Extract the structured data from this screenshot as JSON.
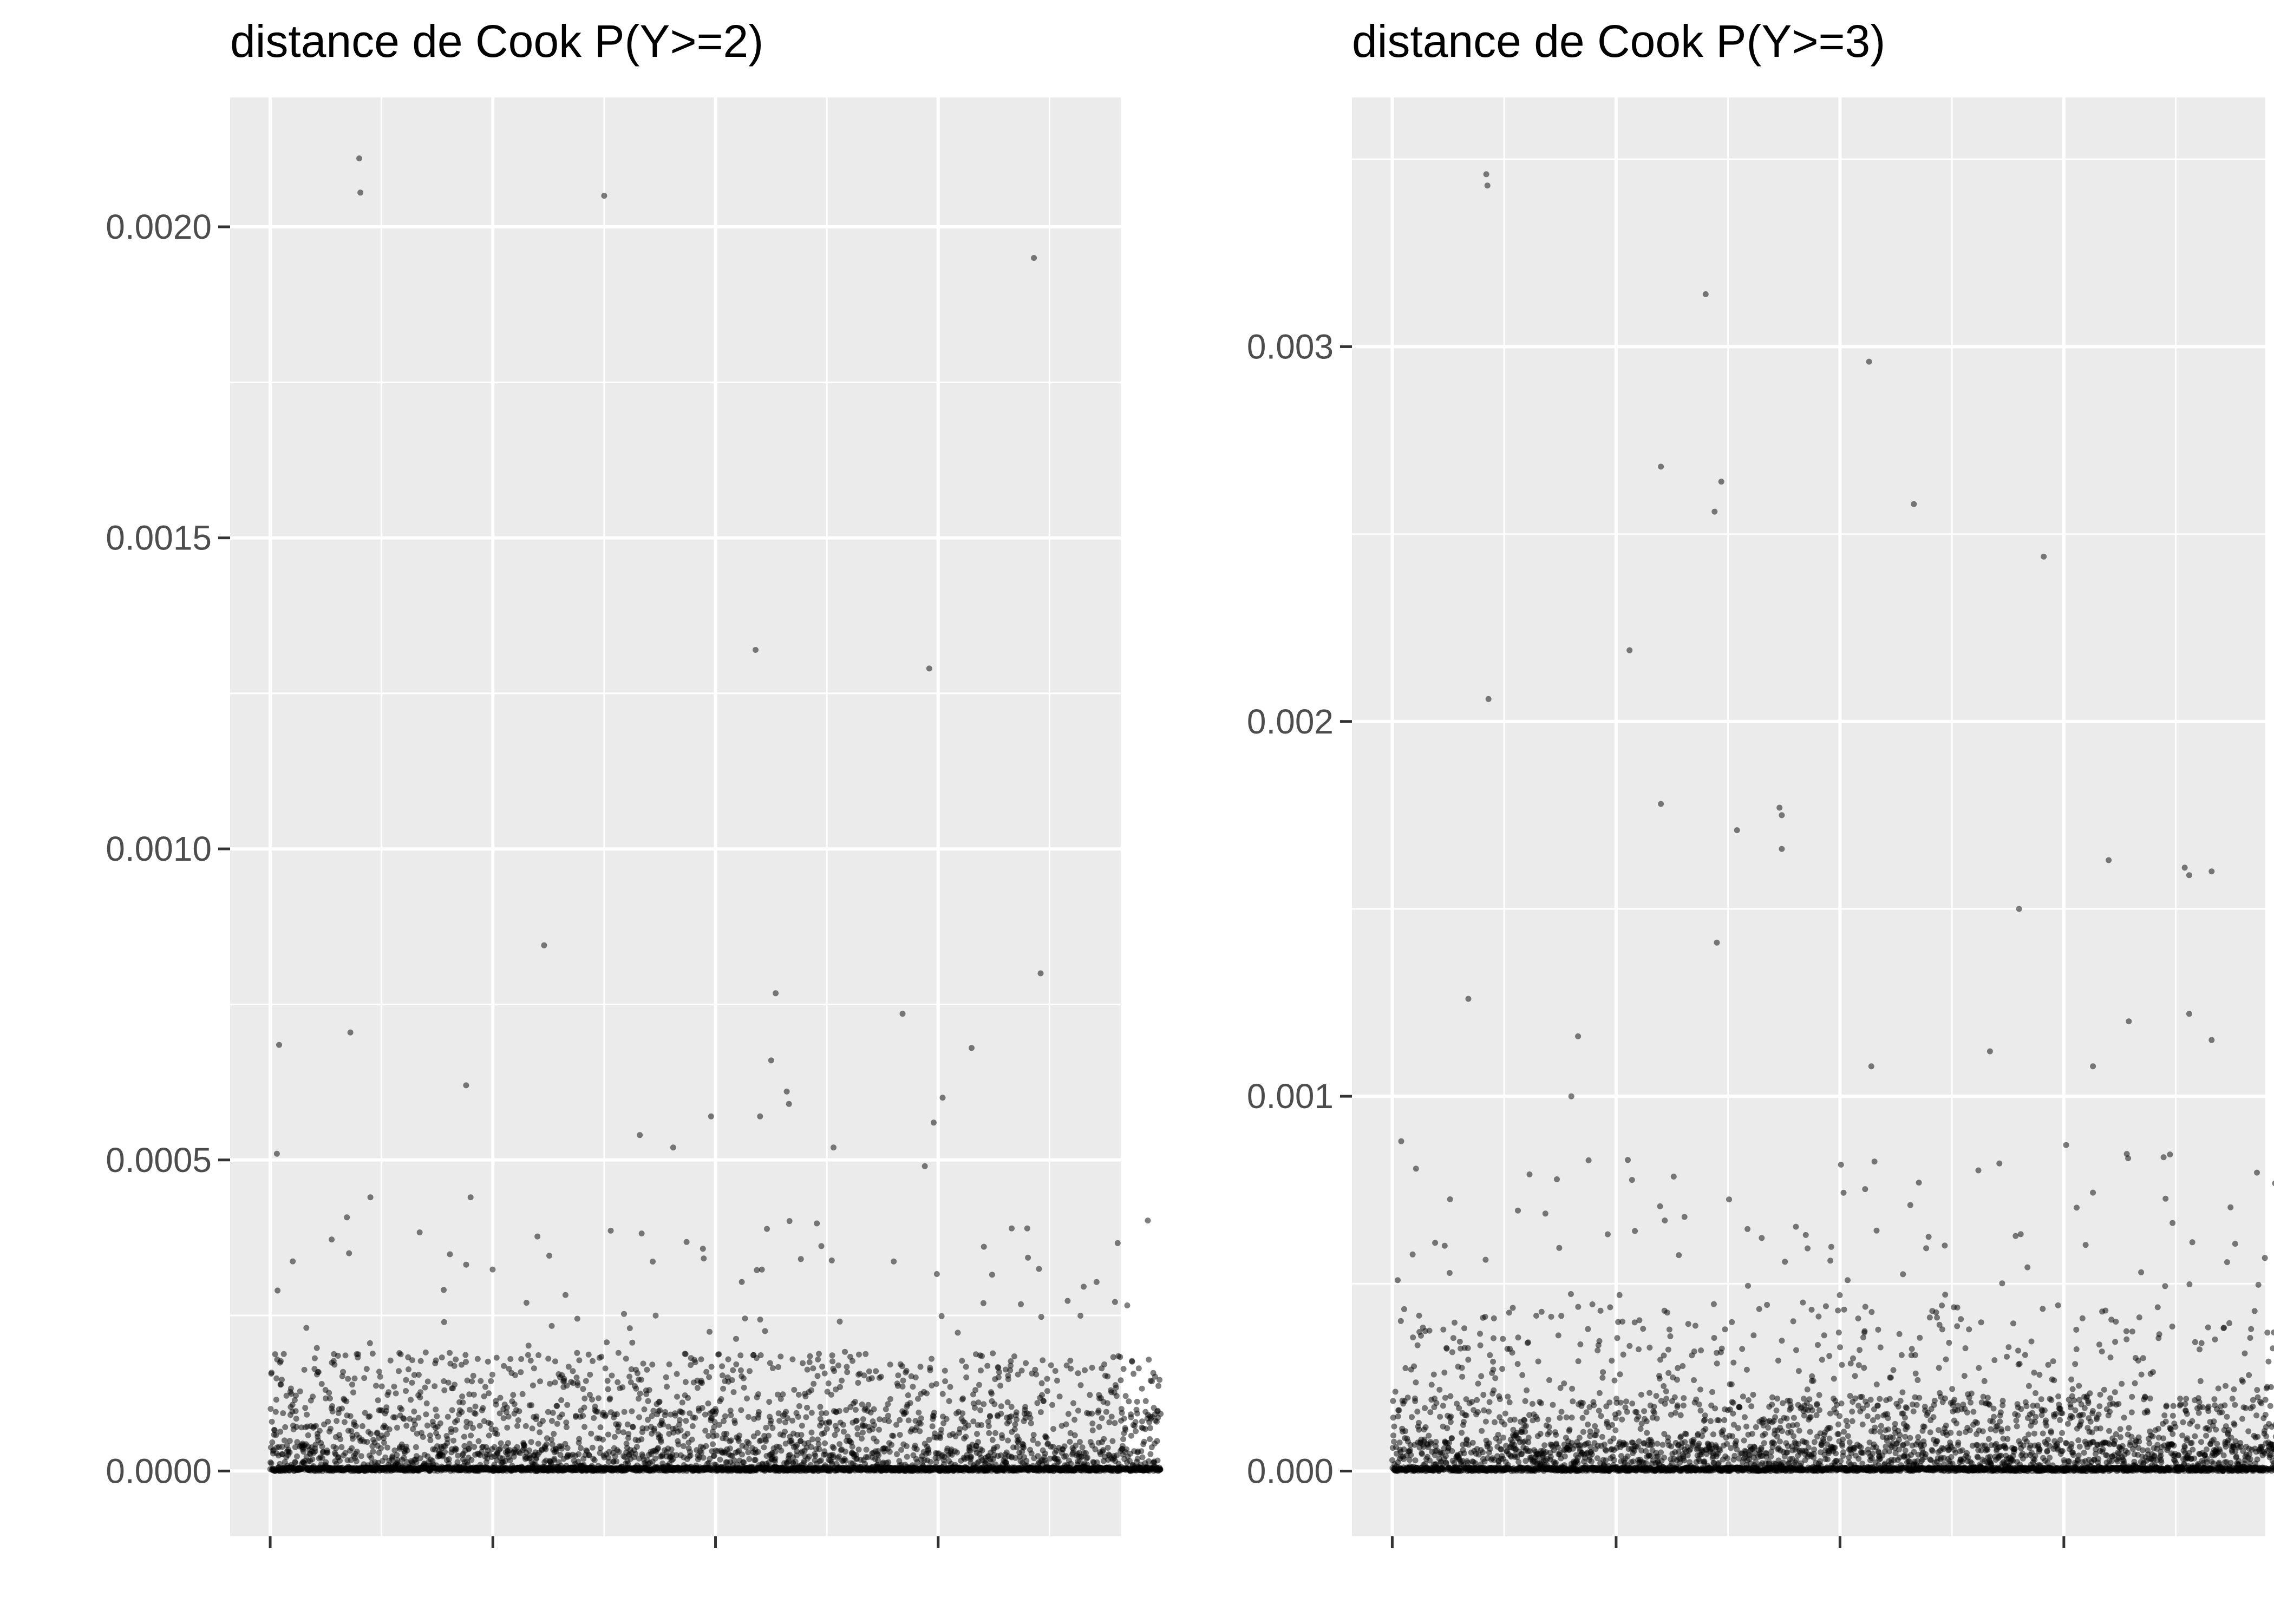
{
  "chart_data": [
    {
      "type": "scatter",
      "title": "distance de Cook P(Y>=2)",
      "xlabel": "",
      "ylabel": "",
      "n_points": 4000,
      "xlim": [
        -180,
        3820
      ],
      "x_major_ticks": [
        0,
        1000,
        2000,
        3000
      ],
      "x_tick_labels_shown": false,
      "ylim": [
        -0.000105,
        0.002208
      ],
      "yticks": [
        0.0,
        0.0005,
        0.001,
        0.0015,
        0.002
      ],
      "ytick_labels": [
        "0.0000",
        "0.0005",
        "0.0010",
        "0.0015",
        "0.0020"
      ],
      "grid": true,
      "legend": "none",
      "point_color": "#000000",
      "point_alpha": 0.5,
      "panel_background": "#ebebeb",
      "notable_points": [
        {
          "x": 30,
          "y": 0.00051
        },
        {
          "x": 40,
          "y": 0.000685
        },
        {
          "x": 360,
          "y": 0.000705
        },
        {
          "x": 400,
          "y": 0.00211
        },
        {
          "x": 405,
          "y": 0.002055
        },
        {
          "x": 450,
          "y": 0.00044
        },
        {
          "x": 880,
          "y": 0.00062
        },
        {
          "x": 900,
          "y": 0.00044
        },
        {
          "x": 1230,
          "y": 0.000845
        },
        {
          "x": 1500,
          "y": 0.00205
        },
        {
          "x": 1660,
          "y": 0.00054
        },
        {
          "x": 1810,
          "y": 0.00052
        },
        {
          "x": 1980,
          "y": 0.00057
        },
        {
          "x": 2180,
          "y": 0.00132
        },
        {
          "x": 2200,
          "y": 0.00057
        },
        {
          "x": 2270,
          "y": 0.000768
        },
        {
          "x": 2250,
          "y": 0.00066
        },
        {
          "x": 2320,
          "y": 0.00061
        },
        {
          "x": 2330,
          "y": 0.00059
        },
        {
          "x": 2530,
          "y": 0.00052
        },
        {
          "x": 2840,
          "y": 0.000735
        },
        {
          "x": 2960,
          "y": 0.00129
        },
        {
          "x": 3020,
          "y": 0.0006
        },
        {
          "x": 3150,
          "y": 0.00068
        },
        {
          "x": 3430,
          "y": 0.00195
        },
        {
          "x": 3460,
          "y": 0.0008
        },
        {
          "x": 2940,
          "y": 0.00049
        },
        {
          "x": 2980,
          "y": 0.00056
        },
        {
          "x": 3330,
          "y": 0.00039
        },
        {
          "x": 3400,
          "y": 0.00039
        }
      ]
    },
    {
      "type": "scatter",
      "title": "distance de Cook P(Y>=3)",
      "xlabel": "",
      "ylabel": "",
      "n_points": 4000,
      "xlim": [
        -180,
        3900
      ],
      "x_major_ticks": [
        0,
        1000,
        2000,
        3000
      ],
      "x_tick_labels_shown": false,
      "ylim": [
        -0.000174,
        0.003665
      ],
      "yticks": [
        0.0,
        0.001,
        0.002,
        0.003
      ],
      "ytick_labels": [
        "0.000",
        "0.001",
        "0.002",
        "0.003"
      ],
      "grid": true,
      "legend": "none",
      "point_color": "#000000",
      "point_alpha": 0.5,
      "panel_background": "#ebebeb",
      "notable_points": [
        {
          "x": 40,
          "y": 0.00088
        },
        {
          "x": 340,
          "y": 0.00126
        },
        {
          "x": 420,
          "y": 0.00346
        },
        {
          "x": 425,
          "y": 0.00343
        },
        {
          "x": 430,
          "y": 0.00206
        },
        {
          "x": 830,
          "y": 0.00116
        },
        {
          "x": 800,
          "y": 0.001
        },
        {
          "x": 1060,
          "y": 0.00219
        },
        {
          "x": 1200,
          "y": 0.00268
        },
        {
          "x": 1200,
          "y": 0.00178
        },
        {
          "x": 1400,
          "y": 0.00314
        },
        {
          "x": 1440,
          "y": 0.00256
        },
        {
          "x": 1470,
          "y": 0.00264
        },
        {
          "x": 1540,
          "y": 0.00171
        },
        {
          "x": 1730,
          "y": 0.00177
        },
        {
          "x": 1740,
          "y": 0.00175
        },
        {
          "x": 1740,
          "y": 0.00166
        },
        {
          "x": 1450,
          "y": 0.00141
        },
        {
          "x": 2130,
          "y": 0.00296
        },
        {
          "x": 2330,
          "y": 0.00258
        },
        {
          "x": 2140,
          "y": 0.00108
        },
        {
          "x": 2670,
          "y": 0.00112
        },
        {
          "x": 2910,
          "y": 0.00244
        },
        {
          "x": 2800,
          "y": 0.0015
        },
        {
          "x": 3200,
          "y": 0.00163
        },
        {
          "x": 3540,
          "y": 0.00161
        },
        {
          "x": 3560,
          "y": 0.00159
        },
        {
          "x": 3660,
          "y": 0.0016
        },
        {
          "x": 3560,
          "y": 0.00122
        },
        {
          "x": 3660,
          "y": 0.00115
        },
        {
          "x": 3130,
          "y": 0.00108
        },
        {
          "x": 3290,
          "y": 0.0012
        },
        {
          "x": 3010,
          "y": 0.00087
        }
      ]
    }
  ]
}
